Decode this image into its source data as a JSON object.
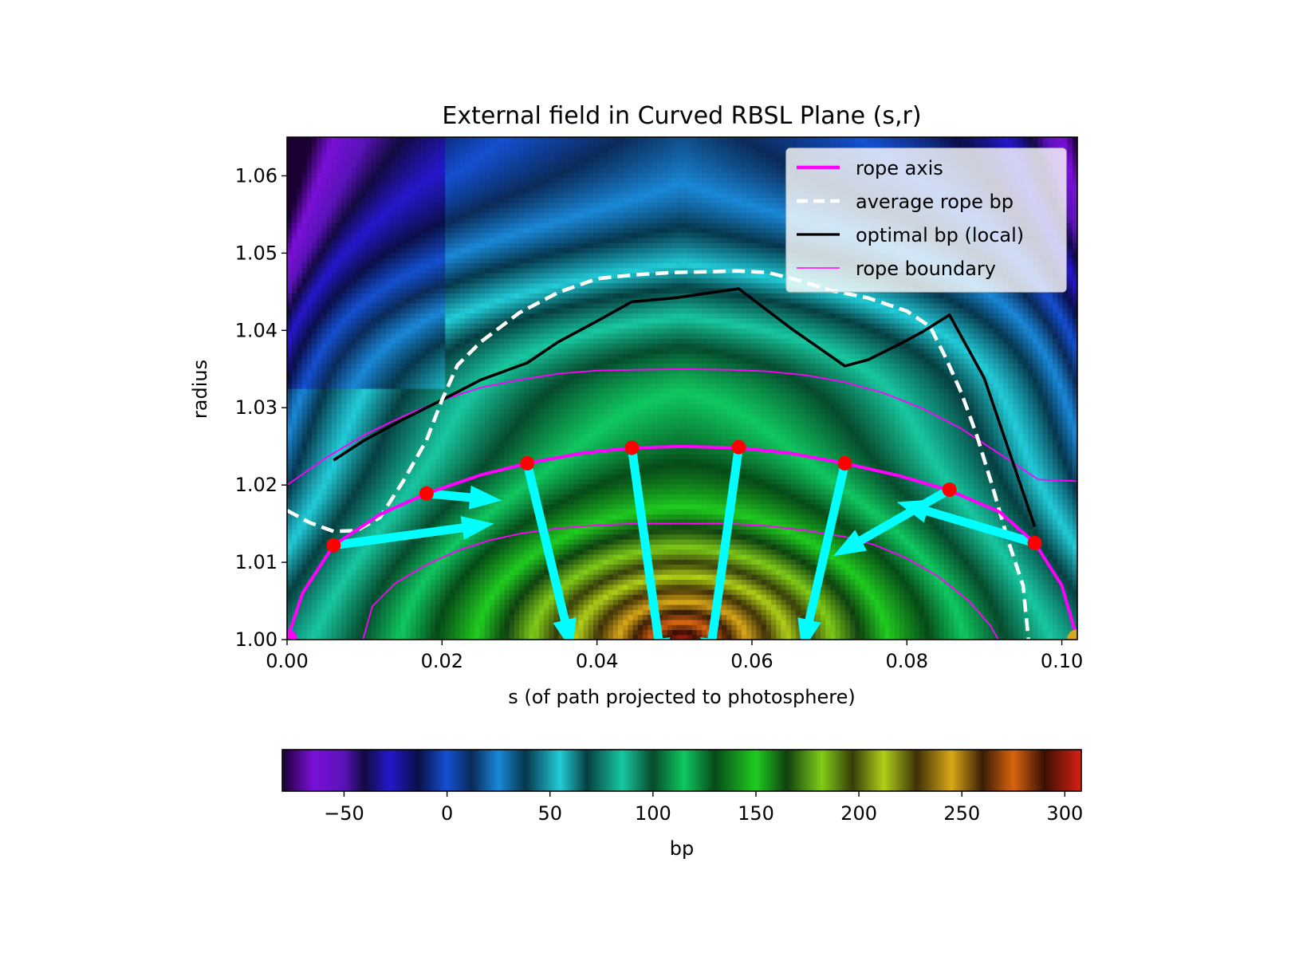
{
  "chart_data": {
    "type": "heatmap",
    "title": "External field in Curved RBSL Plane (s,r)",
    "xlabel": "s (of path projected to photosphere)",
    "ylabel": "radius",
    "xlim": [
      0.0,
      0.102
    ],
    "ylim": [
      1.0,
      1.065
    ],
    "xticks": [
      0.0,
      0.02,
      0.04,
      0.06,
      0.08,
      0.1
    ],
    "xtick_labels": [
      "0.00",
      "0.02",
      "0.04",
      "0.06",
      "0.08",
      "0.10"
    ],
    "yticks": [
      1.0,
      1.01,
      1.02,
      1.03,
      1.04,
      1.05,
      1.06
    ],
    "ytick_labels": [
      "1.00",
      "1.01",
      "1.02",
      "1.03",
      "1.04",
      "1.05",
      "1.06"
    ],
    "colorbar": {
      "label": "bp",
      "range": [
        -80,
        308
      ],
      "ticks": [
        -50,
        0,
        50,
        100,
        150,
        200,
        250,
        300
      ],
      "tick_labels": [
        "−50",
        "0",
        "50",
        "100",
        "150",
        "200",
        "250",
        "300"
      ],
      "colormap_stops": [
        {
          "v": -80,
          "color": "#1a0033"
        },
        {
          "v": -65,
          "color": "#7a10d8"
        },
        {
          "v": -50,
          "color": "#5a12b8"
        },
        {
          "v": -40,
          "color": "#120a40"
        },
        {
          "v": -28,
          "color": "#2418cc"
        },
        {
          "v": -14,
          "color": "#0a0f48"
        },
        {
          "v": 0,
          "color": "#1450d0"
        },
        {
          "v": 12,
          "color": "#0a2a58"
        },
        {
          "v": 25,
          "color": "#1a88d8"
        },
        {
          "v": 38,
          "color": "#06364c"
        },
        {
          "v": 55,
          "color": "#22ccd8"
        },
        {
          "v": 68,
          "color": "#063e40"
        },
        {
          "v": 85,
          "color": "#18c8a0"
        },
        {
          "v": 100,
          "color": "#064a2c"
        },
        {
          "v": 115,
          "color": "#10c860"
        },
        {
          "v": 130,
          "color": "#064a18"
        },
        {
          "v": 150,
          "color": "#20cc20"
        },
        {
          "v": 165,
          "color": "#0e4010"
        },
        {
          "v": 182,
          "color": "#80cc18"
        },
        {
          "v": 197,
          "color": "#363c0a"
        },
        {
          "v": 212,
          "color": "#b0d018"
        },
        {
          "v": 228,
          "color": "#3e3008"
        },
        {
          "v": 245,
          "color": "#d8a818"
        },
        {
          "v": 260,
          "color": "#3a1c06"
        },
        {
          "v": 275,
          "color": "#d86410"
        },
        {
          "v": 290,
          "color": "#3a1004"
        },
        {
          "v": 308,
          "color": "#d82010"
        }
      ]
    },
    "legend": {
      "placement": "top-right",
      "entries": [
        {
          "label": "rope axis",
          "color": "#ff00ff",
          "style": "solid-thick"
        },
        {
          "label": "average rope bp",
          "color": "#ffffff",
          "style": "dashed"
        },
        {
          "label": "optimal bp (local)",
          "color": "#000000",
          "style": "solid"
        },
        {
          "label": "rope boundary",
          "color": "#ff00ff",
          "style": "solid-thin"
        }
      ]
    },
    "series": [
      {
        "name": "rope axis",
        "color": "#ff00ff",
        "x": [
          0.0,
          0.002,
          0.006,
          0.012,
          0.018,
          0.025,
          0.031,
          0.038,
          0.0445,
          0.051,
          0.0583,
          0.065,
          0.072,
          0.079,
          0.0855,
          0.092,
          0.0965,
          0.1,
          0.102
        ],
        "y": [
          1.0,
          1.006,
          1.0122,
          1.0162,
          1.0189,
          1.0213,
          1.0228,
          1.0241,
          1.0248,
          1.025,
          1.0248,
          1.0241,
          1.0228,
          1.0212,
          1.0193,
          1.0165,
          1.0125,
          1.007,
          1.0
        ]
      },
      {
        "name": "average rope bp",
        "color": "#ffffff",
        "x": [
          0.0,
          0.003,
          0.006,
          0.009,
          0.012,
          0.015,
          0.018,
          0.02,
          0.022,
          0.025,
          0.03,
          0.035,
          0.04,
          0.045,
          0.05,
          0.055,
          0.058,
          0.062,
          0.066,
          0.07,
          0.075,
          0.08,
          0.083,
          0.085,
          0.087,
          0.089,
          0.091,
          0.093,
          0.095,
          0.0957
        ],
        "y": [
          1.0167,
          1.0151,
          1.014,
          1.0141,
          1.0158,
          1.0205,
          1.0258,
          1.031,
          1.0355,
          1.0385,
          1.0423,
          1.0449,
          1.0467,
          1.0472,
          1.0475,
          1.0476,
          1.0477,
          1.0475,
          1.0465,
          1.0452,
          1.0442,
          1.0425,
          1.0405,
          1.0365,
          1.032,
          1.0265,
          1.02,
          1.013,
          1.007,
          1.0
        ]
      },
      {
        "name": "optimal bp (local)",
        "color": "#000000",
        "x": [
          0.006,
          0.01,
          0.015,
          0.02,
          0.025,
          0.031,
          0.035,
          0.04,
          0.0445,
          0.05,
          0.0583,
          0.065,
          0.072,
          0.075,
          0.079,
          0.082,
          0.0855,
          0.09,
          0.0965
        ],
        "y": [
          1.0232,
          1.0258,
          1.0285,
          1.031,
          1.0336,
          1.0358,
          1.0385,
          1.0412,
          1.0437,
          1.0442,
          1.0454,
          1.0403,
          1.0354,
          1.0362,
          1.0382,
          1.0398,
          1.042,
          1.0338,
          1.0146
        ]
      },
      {
        "name": "rope boundary",
        "color": "#ff00ff",
        "parts": [
          {
            "x": [
              0.0,
              0.005,
              0.01,
              0.015,
              0.02,
              0.025,
              0.03,
              0.035,
              0.04,
              0.045,
              0.051,
              0.057,
              0.062,
              0.067,
              0.072,
              0.077,
              0.082,
              0.087,
              0.092,
              0.097,
              0.102
            ],
            "y": [
              1.02,
              1.0235,
              1.0265,
              1.0289,
              1.031,
              1.0326,
              1.0336,
              1.0344,
              1.0348,
              1.0349,
              1.035,
              1.0349,
              1.0347,
              1.0342,
              1.0333,
              1.0319,
              1.0299,
              1.0273,
              1.024,
              1.0207,
              1.0205
            ]
          },
          {
            "x": [
              0.0098,
              0.011,
              0.014,
              0.018,
              0.022,
              0.026,
              0.03,
              0.035,
              0.04,
              0.045,
              0.051,
              0.057,
              0.062,
              0.067,
              0.072,
              0.076,
              0.08,
              0.084,
              0.088,
              0.0908,
              0.0918
            ],
            "y": [
              1.0,
              1.0043,
              1.0073,
              1.0097,
              1.0115,
              1.0128,
              1.0137,
              1.0144,
              1.0148,
              1.015,
              1.015,
              1.015,
              1.0147,
              1.0141,
              1.0133,
              1.0122,
              1.0105,
              1.0082,
              1.005,
              1.0018,
              1.0
            ]
          }
        ]
      }
    ],
    "markers": {
      "color": "#ff0000",
      "x": [
        0.006,
        0.018,
        0.031,
        0.0445,
        0.0583,
        0.072,
        0.0855,
        0.0965
      ],
      "y": [
        1.0122,
        1.0189,
        1.0228,
        1.0248,
        1.0249,
        1.0228,
        1.0194,
        1.0125
      ]
    },
    "arrows": {
      "color": "#00ffff",
      "segments": [
        {
          "x0": 0.006,
          "y0": 1.0122,
          "x1": 0.0267,
          "y1": 1.015
        },
        {
          "x0": 0.018,
          "y0": 1.0189,
          "x1": 0.0277,
          "y1": 1.018
        },
        {
          "x0": 0.031,
          "y0": 1.0228,
          "x1": 0.0368,
          "y1": 0.9985
        },
        {
          "x0": 0.0445,
          "y0": 1.0248,
          "x1": 0.0485,
          "y1": 0.996
        },
        {
          "x0": 0.0583,
          "y0": 1.0249,
          "x1": 0.0543,
          "y1": 0.996
        },
        {
          "x0": 0.072,
          "y0": 1.0228,
          "x1": 0.0665,
          "y1": 0.9985
        },
        {
          "x0": 0.0855,
          "y0": 1.0194,
          "x1": 0.0705,
          "y1": 1.0108
        },
        {
          "x0": 0.0965,
          "y0": 1.0125,
          "x1": 0.0787,
          "y1": 1.0178
        }
      ]
    },
    "footpoints": [
      {
        "x": 0.0,
        "y": 1.0,
        "color": "#ff00ff"
      },
      {
        "x": 0.102,
        "y": 1.0,
        "color": "#daa520"
      }
    ]
  }
}
